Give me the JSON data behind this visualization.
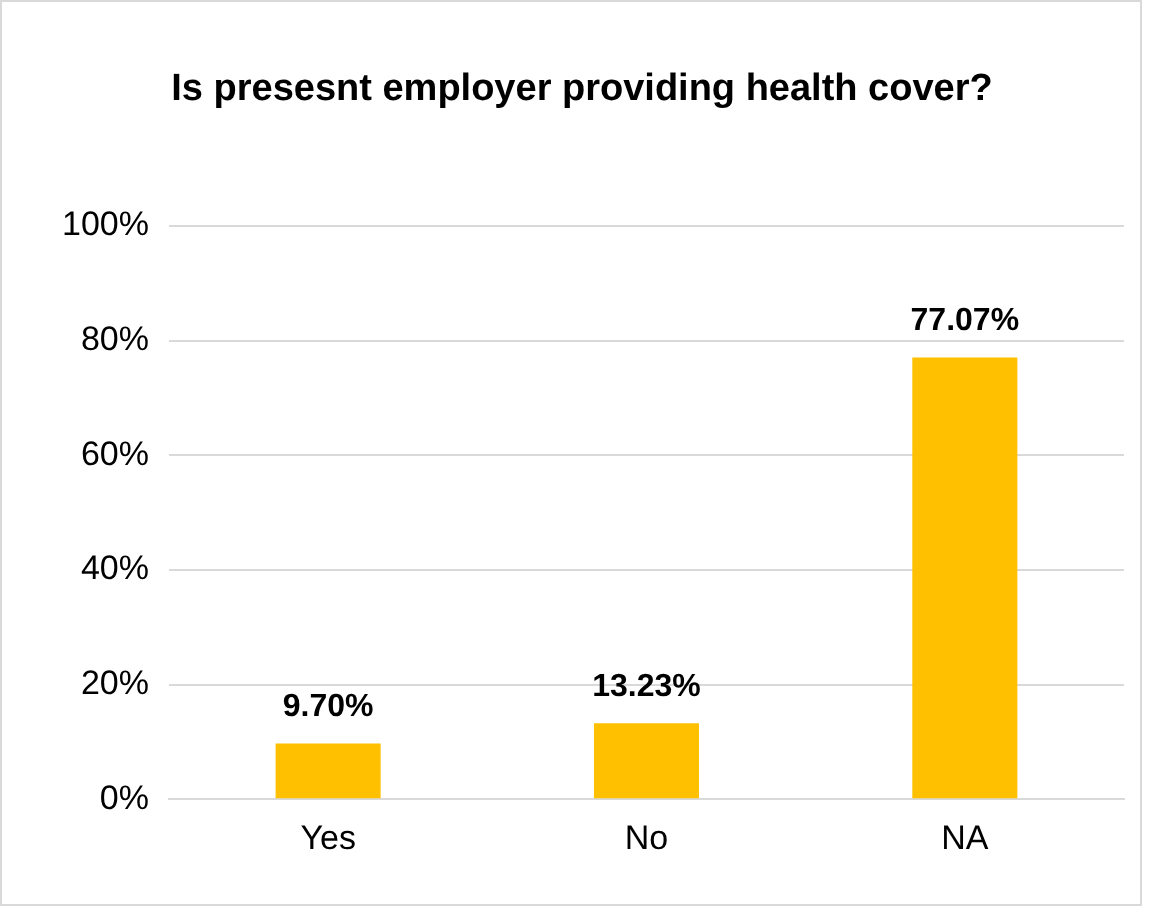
{
  "chart_data": {
    "type": "bar",
    "title": "Is presesnt employer providing health cover?",
    "categories": [
      "Yes",
      "No",
      "NA"
    ],
    "values": [
      9.7,
      13.23,
      77.07
    ],
    "value_labels": [
      "9.70%",
      "13.23%",
      "77.07%"
    ],
    "color": "#ffc000",
    "ylim": [
      0,
      100
    ],
    "yticks": [
      {
        "value": 0,
        "label": "0%"
      },
      {
        "value": 20,
        "label": "20%"
      },
      {
        "value": 40,
        "label": "40%"
      },
      {
        "value": 60,
        "label": "60%"
      },
      {
        "value": 80,
        "label": "80%"
      },
      {
        "value": 100,
        "label": "100%"
      }
    ],
    "grid": "y"
  }
}
